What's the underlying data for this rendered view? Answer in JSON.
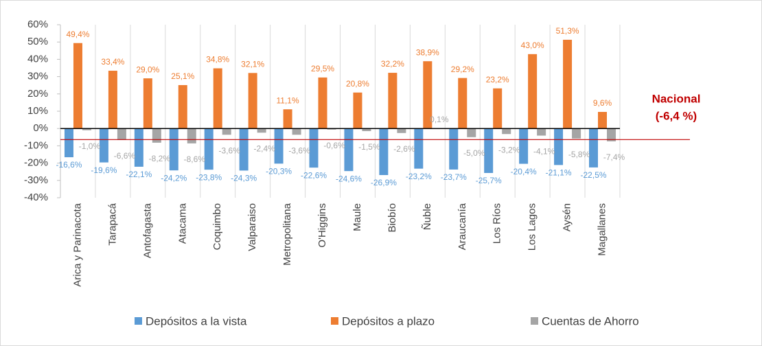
{
  "chart_data": {
    "type": "bar",
    "categories": [
      "Arica y Parinacota",
      "Tarapacá",
      "Antofagasta",
      "Atacama",
      "Coquimbo",
      "Valparaiso",
      "Metropolitana",
      "O'Higgins",
      "Maule",
      "Biobío",
      "Ñuble",
      "Araucanía",
      "Los Ríos",
      "Los Lagos",
      "Aysén",
      "Magallanes"
    ],
    "series": [
      {
        "name": "Depósitos a la vista",
        "color": "#5b9bd5",
        "values": [
          -16.6,
          -19.6,
          -22.1,
          -24.2,
          -23.8,
          -24.3,
          -20.3,
          -22.6,
          -24.6,
          -26.9,
          -23.2,
          -23.7,
          -25.7,
          -20.4,
          -21.1,
          -22.5
        ],
        "value_labels": [
          "-16,6%",
          "-19,6%",
          "-22,1%",
          "-24,2%",
          "-23,8%",
          "-24,3%",
          "-20,3%",
          "-22,6%",
          "-24,6%",
          "-26,9%",
          "-23,2%",
          "-23,7%",
          "-25,7%",
          "-20,4%",
          "-21,1%",
          "-22,5%"
        ]
      },
      {
        "name": "Depósitos a plazo",
        "color": "#ed7d31",
        "values": [
          49.4,
          33.4,
          29.0,
          25.1,
          34.8,
          32.1,
          11.1,
          29.5,
          20.8,
          32.2,
          38.9,
          29.2,
          23.2,
          43.0,
          51.3,
          9.6
        ],
        "value_labels": [
          "49,4%",
          "33,4%",
          "29,0%",
          "25,1%",
          "34,8%",
          "32,1%",
          "11,1%",
          "29,5%",
          "20,8%",
          "32,2%",
          "38,9%",
          "29,2%",
          "23,2%",
          "43,0%",
          "51,3%",
          "9,6%"
        ]
      },
      {
        "name": "Cuentas de Ahorro",
        "color": "#a5a5a5",
        "values": [
          -1.0,
          -6.6,
          -8.2,
          -8.6,
          -3.6,
          -2.4,
          -3.6,
          -0.6,
          -1.5,
          -2.6,
          0.1,
          -5.0,
          -3.2,
          -4.1,
          -5.8,
          -7.4
        ],
        "value_labels": [
          "-1,0%",
          "-6,6%",
          "-8,2%",
          "-8,6%",
          "-3,6%",
          "-2,4%",
          "-3,6%",
          "-0,6%",
          "-1,5%",
          "-2,6%",
          "0,1%",
          "-5,0%",
          "-3,2%",
          "-4,1%",
          "-5,8%",
          "-7,4%"
        ]
      }
    ],
    "ylim": [
      -40,
      60
    ],
    "yticks": [
      {
        "value": -40,
        "label": "-40%"
      },
      {
        "value": -30,
        "label": "-30%"
      },
      {
        "value": -20,
        "label": "-20%"
      },
      {
        "value": -10,
        "label": "-10%"
      },
      {
        "value": 0,
        "label": "0%"
      },
      {
        "value": 10,
        "label": "10%"
      },
      {
        "value": 20,
        "label": "20%"
      },
      {
        "value": 30,
        "label": "30%"
      },
      {
        "value": 40,
        "label": "40%"
      },
      {
        "value": 50,
        "label": "50%"
      },
      {
        "value": 60,
        "label": "60%"
      }
    ],
    "reference_line": {
      "value": -6.4,
      "color": "#c00000",
      "label": [
        "Nacional",
        "(-6,4 %)"
      ]
    },
    "legend": "bottom"
  }
}
